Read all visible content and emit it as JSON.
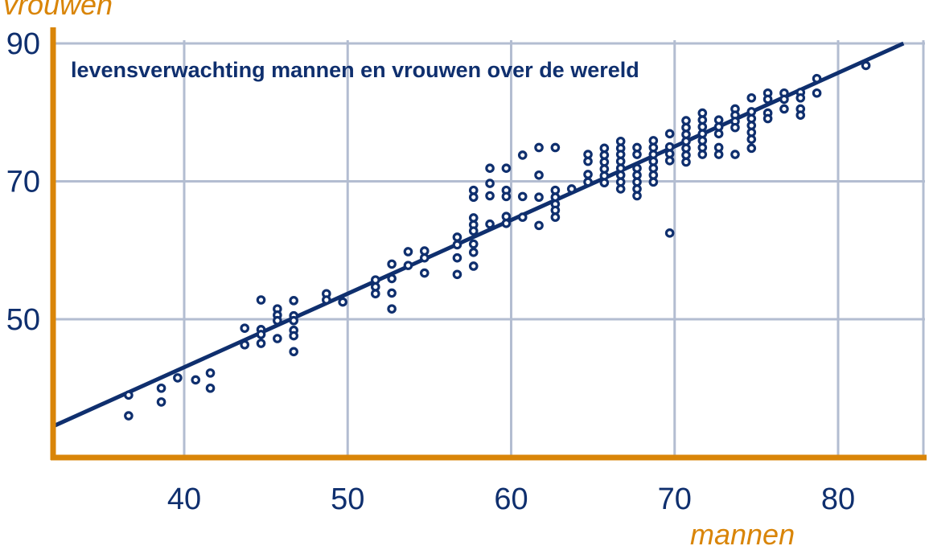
{
  "chart_data": {
    "type": "scatter",
    "title": "levensverwachting mannen en vrouwen over de wereld",
    "xlabel": "mannen",
    "ylabel": "vrouwen",
    "xlim": [
      32,
      85
    ],
    "ylim": [
      30,
      90
    ],
    "xticks": [
      40,
      50,
      60,
      70,
      80
    ],
    "yticks": [
      50,
      70,
      90
    ],
    "xtick_labels": [
      "40",
      "50",
      "60",
      "70",
      "80"
    ],
    "ytick_labels": [
      "50",
      "70",
      "90"
    ],
    "grid": true,
    "trend_line": {
      "x": [
        32,
        84
      ],
      "y": [
        34.5,
        90
      ]
    },
    "colors": {
      "points": "#0f2f6e",
      "line": "#0f2f6e",
      "axes": "#d98508",
      "grid": "#b3bdd1"
    },
    "points": [
      [
        36.6,
        39
      ],
      [
        36.6,
        36
      ],
      [
        38.6,
        40
      ],
      [
        38.6,
        38
      ],
      [
        39.6,
        41.5
      ],
      [
        40.7,
        41.2
      ],
      [
        41.6,
        42.2
      ],
      [
        41.6,
        40
      ],
      [
        43.7,
        48.7
      ],
      [
        43.7,
        46.3
      ],
      [
        44.7,
        52.8
      ],
      [
        44.7,
        48.5
      ],
      [
        44.7,
        47.8
      ],
      [
        44.7,
        46.5
      ],
      [
        45.7,
        51.5
      ],
      [
        45.7,
        50.6
      ],
      [
        45.7,
        49.8
      ],
      [
        45.7,
        47.2
      ],
      [
        46.7,
        52.7
      ],
      [
        46.7,
        50.5
      ],
      [
        46.7,
        49.8
      ],
      [
        46.7,
        48.4
      ],
      [
        46.7,
        47.6
      ],
      [
        46.7,
        45.3
      ],
      [
        48.7,
        53.7
      ],
      [
        48.7,
        52.8
      ],
      [
        49.7,
        52.5
      ],
      [
        51.7,
        55.7
      ],
      [
        51.7,
        54.7
      ],
      [
        51.7,
        53.7
      ],
      [
        52.7,
        58
      ],
      [
        52.7,
        55.9
      ],
      [
        52.7,
        53.8
      ],
      [
        52.7,
        51.5
      ],
      [
        53.7,
        59.8
      ],
      [
        53.7,
        57.8
      ],
      [
        54.7,
        59.9
      ],
      [
        54.7,
        58.9
      ],
      [
        54.7,
        56.7
      ],
      [
        56.7,
        61.9
      ],
      [
        56.7,
        60.8
      ],
      [
        56.7,
        58.9
      ],
      [
        56.7,
        56.5
      ],
      [
        57.7,
        68.7
      ],
      [
        57.7,
        67.7
      ],
      [
        57.7,
        64.7
      ],
      [
        57.7,
        63.7
      ],
      [
        57.7,
        62.8
      ],
      [
        57.7,
        60.9
      ],
      [
        57.7,
        59.7
      ],
      [
        57.7,
        57.7
      ],
      [
        58.7,
        71.9
      ],
      [
        58.7,
        69.7
      ],
      [
        58.7,
        67.9
      ],
      [
        58.7,
        63.8
      ],
      [
        59.7,
        71.9
      ],
      [
        59.7,
        68.7
      ],
      [
        59.7,
        67.8
      ],
      [
        59.7,
        64.9
      ],
      [
        59.7,
        63.9
      ],
      [
        60.7,
        73.8
      ],
      [
        60.7,
        67.8
      ],
      [
        60.7,
        64.8
      ],
      [
        61.7,
        74.9
      ],
      [
        61.7,
        70.9
      ],
      [
        61.7,
        67.7
      ],
      [
        61.7,
        63.6
      ],
      [
        62.7,
        74.9
      ],
      [
        62.7,
        68.7
      ],
      [
        62.7,
        67.7
      ],
      [
        62.7,
        66.7
      ],
      [
        62.7,
        65.8
      ],
      [
        62.7,
        64.8
      ],
      [
        63.7,
        68.9
      ],
      [
        64.7,
        73.9
      ],
      [
        64.7,
        72.9
      ],
      [
        64.7,
        71
      ],
      [
        64.7,
        69.9
      ],
      [
        65.7,
        74.8
      ],
      [
        65.7,
        73.8
      ],
      [
        65.7,
        72.8
      ],
      [
        65.7,
        71.8
      ],
      [
        65.7,
        70.8
      ],
      [
        65.7,
        69.8
      ],
      [
        66.7,
        75.8
      ],
      [
        66.7,
        74.8
      ],
      [
        66.7,
        73.9
      ],
      [
        66.7,
        72.9
      ],
      [
        66.7,
        71.9
      ],
      [
        66.7,
        70.9
      ],
      [
        66.7,
        69.9
      ],
      [
        66.7,
        68.9
      ],
      [
        67.7,
        74.9
      ],
      [
        67.7,
        73.9
      ],
      [
        67.7,
        71.9
      ],
      [
        67.7,
        70.9
      ],
      [
        67.7,
        69.9
      ],
      [
        67.7,
        68.9
      ],
      [
        67.7,
        67.9
      ],
      [
        68.7,
        75.9
      ],
      [
        68.7,
        74.9
      ],
      [
        68.7,
        73.9
      ],
      [
        68.7,
        72.9
      ],
      [
        68.7,
        71.9
      ],
      [
        68.7,
        70.9
      ],
      [
        68.7,
        69.9
      ],
      [
        69.7,
        76.9
      ],
      [
        69.7,
        75
      ],
      [
        69.7,
        74
      ],
      [
        69.7,
        73
      ],
      [
        69.7,
        62.5
      ],
      [
        70.7,
        78.8
      ],
      [
        70.7,
        77.8
      ],
      [
        70.7,
        76.8
      ],
      [
        70.7,
        75.8
      ],
      [
        70.7,
        74.8
      ],
      [
        70.7,
        73.8
      ],
      [
        70.7,
        72.8
      ],
      [
        71.7,
        79.9
      ],
      [
        71.7,
        78.9
      ],
      [
        71.7,
        77.9
      ],
      [
        71.7,
        76.9
      ],
      [
        71.7,
        75.9
      ],
      [
        71.7,
        74.9
      ],
      [
        71.7,
        73.9
      ],
      [
        72.7,
        78.9
      ],
      [
        72.7,
        77.9
      ],
      [
        72.7,
        76.9
      ],
      [
        72.7,
        74.9
      ],
      [
        72.7,
        73.9
      ],
      [
        73.7,
        80.5
      ],
      [
        73.7,
        79.6
      ],
      [
        73.7,
        78.7
      ],
      [
        73.7,
        77.8
      ],
      [
        73.7,
        73.9
      ],
      [
        74.7,
        82.1
      ],
      [
        74.7,
        80.1
      ],
      [
        74.7,
        79.1
      ],
      [
        74.7,
        78.1
      ],
      [
        74.7,
        77.1
      ],
      [
        74.7,
        76.1
      ],
      [
        74.7,
        74.8
      ],
      [
        75.7,
        82.8
      ],
      [
        75.7,
        81.9
      ],
      [
        75.7,
        79.9
      ],
      [
        75.7,
        79.1
      ],
      [
        76.7,
        82.8
      ],
      [
        76.7,
        81.9
      ],
      [
        76.7,
        80.5
      ],
      [
        77.7,
        82.9
      ],
      [
        77.7,
        82.1
      ],
      [
        77.7,
        80.5
      ],
      [
        77.7,
        79.6
      ],
      [
        78.7,
        84.9
      ],
      [
        78.7,
        82.8
      ],
      [
        81.7,
        86.8
      ]
    ]
  }
}
